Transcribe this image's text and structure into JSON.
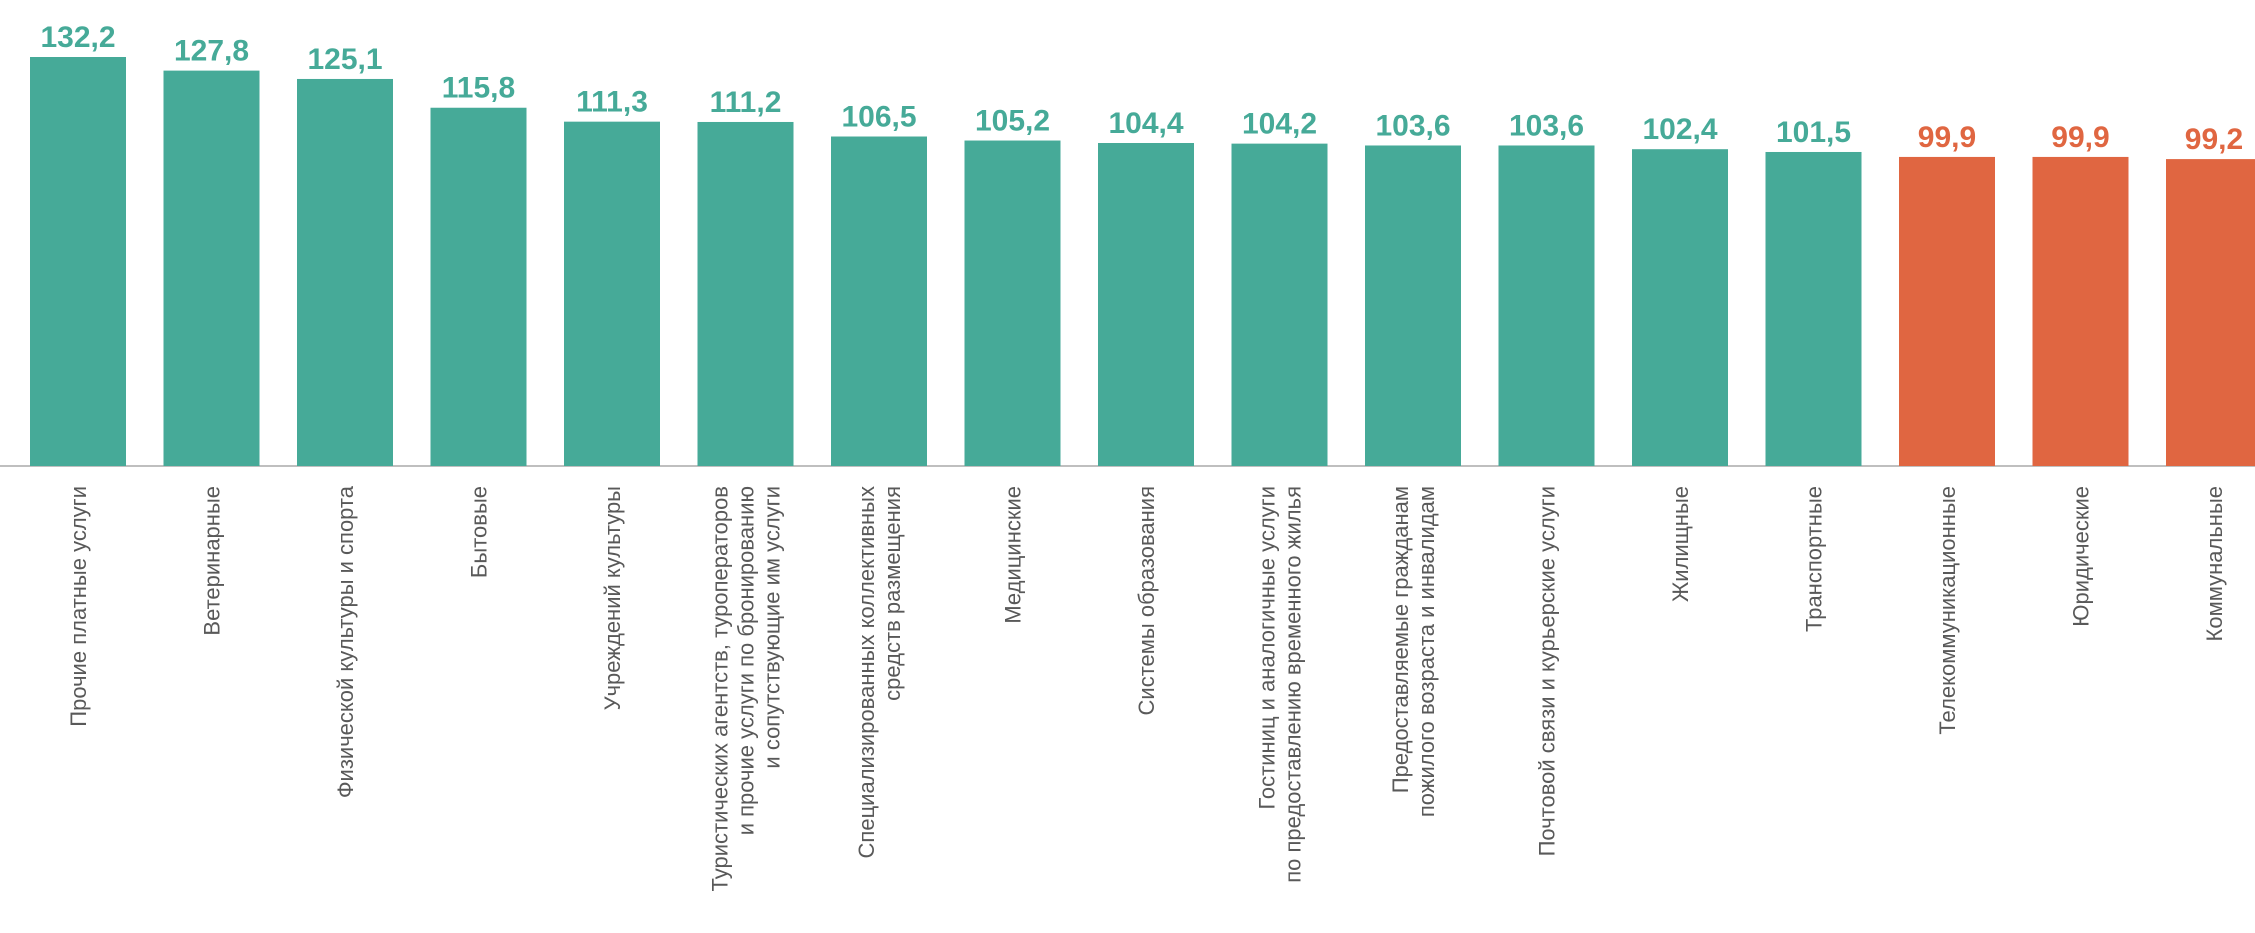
{
  "chart_data": {
    "type": "bar",
    "categories": [
      "Прочие платные услуги",
      "Ветеринарные",
      "Физической культуры и спорта",
      "Бытовые",
      "Учреждений культуры",
      "Туристических агентств, туроператоров\nи прочие услуги по бронированию\nи сопутствующие им услуги",
      "Специализированных коллективных\nсредств размещения",
      "Медицинские",
      "Системы образования",
      "Гостиниц и аналогичные услуги\nпо предоставлению временного жилья",
      "Предоставляемые гражданам\nпожилого возраста и инвалидам",
      "Почтовой связи и курьерские услуги",
      "Жилищные",
      "Транспортные",
      "Телекоммуникационные",
      "Юридические",
      "Коммунальные"
    ],
    "values": [
      132.2,
      127.8,
      125.1,
      115.8,
      111.3,
      111.2,
      106.5,
      105.2,
      104.4,
      104.2,
      103.6,
      103.6,
      102.4,
      101.5,
      99.9,
      99.9,
      99.2
    ],
    "value_labels": [
      "132,2",
      "127,8",
      "125,1",
      "115,8",
      "111,3",
      "111,2",
      "106,5",
      "105,2",
      "104,4",
      "104,2",
      "103,6",
      "103,6",
      "102,4",
      "101,5",
      "99,9",
      "99,9",
      "99,2"
    ],
    "ylim": [
      0,
      132.2
    ],
    "colors": {
      "above_100": "#46AA98",
      "below_100": "#E06641"
    },
    "grid": false,
    "legend": "none"
  }
}
